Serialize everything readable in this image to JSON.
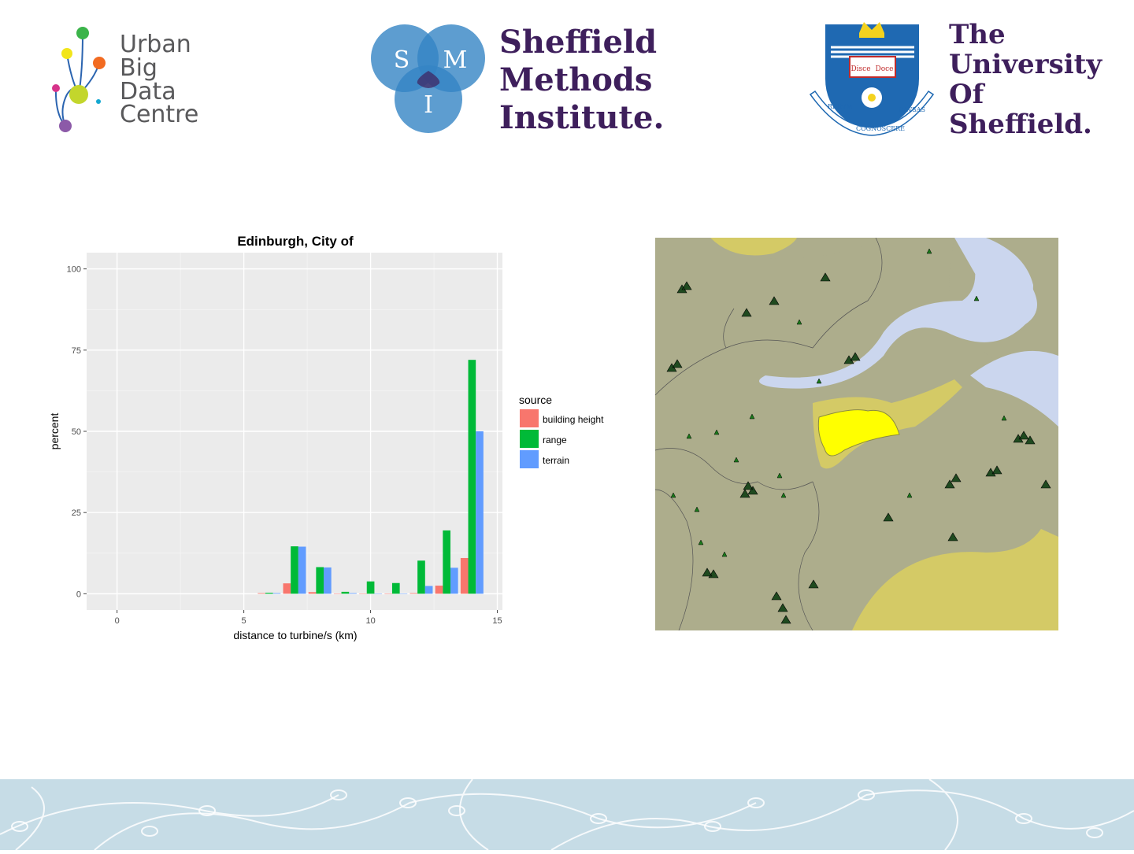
{
  "logos": {
    "ubdc": {
      "lines": [
        "Urban",
        "Big",
        "Data",
        "Centre"
      ]
    },
    "smi": {
      "circle_letters": [
        "S",
        "M",
        "I"
      ],
      "lines": [
        "Sheffield",
        "Methods",
        "Institute."
      ]
    },
    "uos": {
      "lines": [
        "The",
        "University",
        "Of",
        "Sheffield."
      ],
      "crest_motto": [
        "RERVM",
        "COGNOSCERE",
        "CAVSAS"
      ],
      "book_text": [
        "Disce",
        "Doce"
      ]
    }
  },
  "colors": {
    "building_height": "#f8766d",
    "range": "#00ba38",
    "terrain": "#619cff",
    "panel_bg": "#ebebeb",
    "map_land": "#adad8c",
    "map_sea": "#cbd6ee",
    "map_buffer": "#d4ca66",
    "map_highlight": "#ffff00",
    "footer": "#c6dce6"
  },
  "chart_data": {
    "type": "bar",
    "title": "Edinburgh, City of",
    "xlabel": "distance to turbine/s (km)",
    "ylabel": "percent",
    "xlim": [
      -1.2,
      15.2
    ],
    "ylim": [
      -5,
      105
    ],
    "xticks": [
      "0",
      "5",
      "10",
      "15"
    ],
    "yticks": [
      "0",
      "25",
      "50",
      "75",
      "100"
    ],
    "grid": true,
    "legend": {
      "title": "source",
      "position": "right",
      "entries": [
        "building height",
        "range",
        "terrain"
      ]
    },
    "x": [
      6,
      7,
      8,
      9,
      10,
      11,
      12,
      13,
      14
    ],
    "series": [
      {
        "name": "building height",
        "values": [
          0.2,
          3.2,
          0.5,
          0,
          0,
          0,
          0.2,
          2.5,
          11
        ]
      },
      {
        "name": "range",
        "values": [
          0.3,
          14.6,
          8.2,
          0.6,
          3.8,
          3.3,
          10.2,
          19.5,
          72
        ]
      },
      {
        "name": "terrain",
        "values": [
          0.2,
          14.5,
          8.1,
          0.2,
          0,
          0,
          2.4,
          8.0,
          50
        ]
      }
    ]
  }
}
